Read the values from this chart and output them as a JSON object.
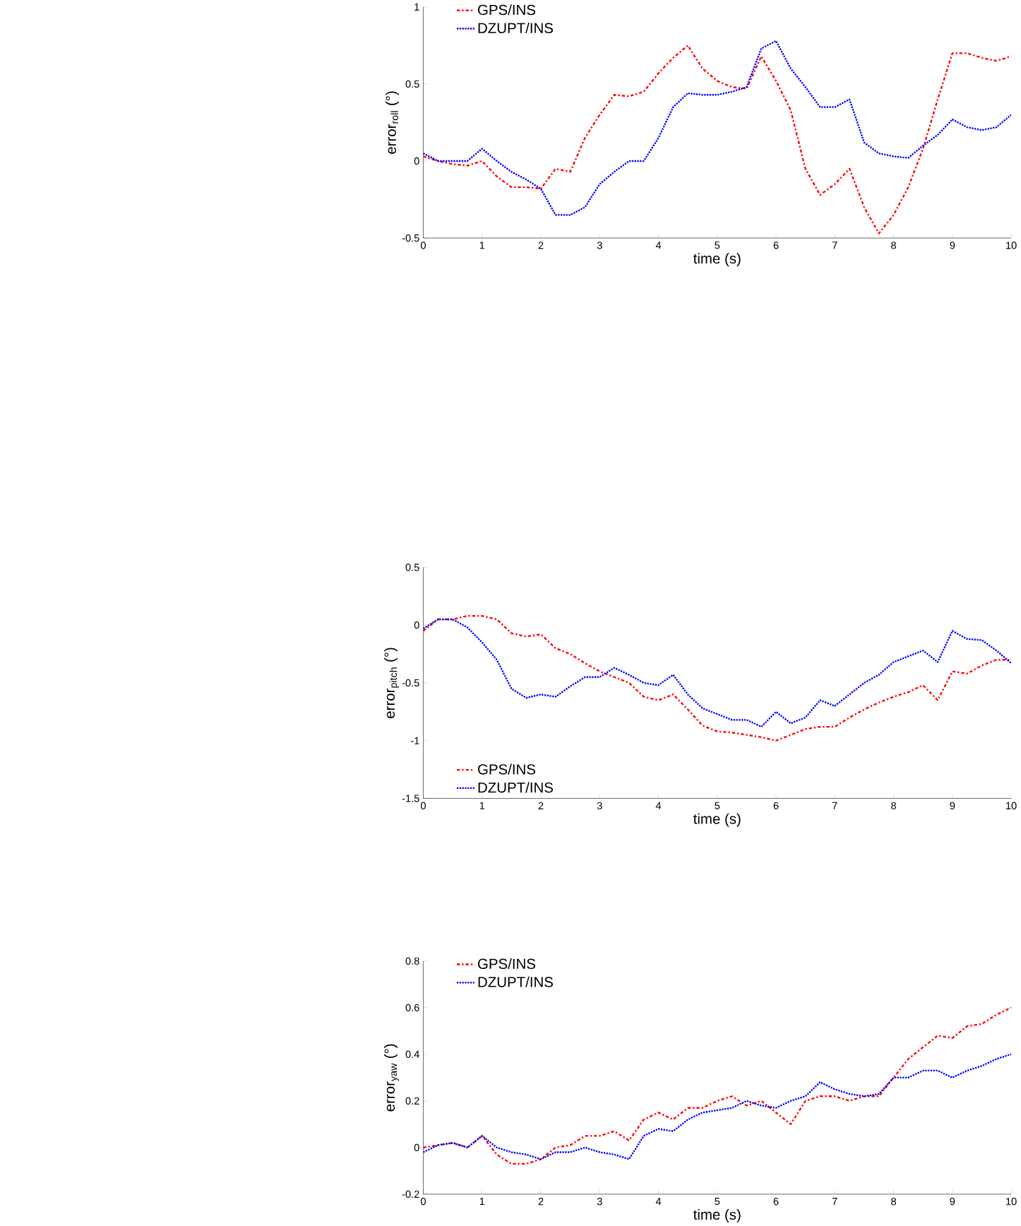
{
  "chart_data": [
    {
      "type": "line",
      "xlabel": "time (s)",
      "ylabel": "error$_{roll}$ (°)",
      "xlim": [
        0,
        10
      ],
      "ylim": [
        -0.5,
        1
      ],
      "xticks": [
        0,
        1,
        2,
        3,
        4,
        5,
        6,
        7,
        8,
        9,
        10
      ],
      "yticks": [
        -0.5,
        0,
        0.5,
        1
      ],
      "legend": "top left",
      "x": [
        0,
        0.25,
        0.5,
        0.75,
        1,
        1.25,
        1.5,
        1.75,
        2,
        2.25,
        2.5,
        2.75,
        3,
        3.25,
        3.5,
        3.75,
        4,
        4.25,
        4.5,
        4.75,
        5,
        5.25,
        5.5,
        5.75,
        6,
        6.25,
        6.5,
        6.75,
        7,
        7.25,
        7.5,
        7.75,
        8,
        8.25,
        8.5,
        8.75,
        9,
        9.25,
        9.5,
        9.75,
        10
      ],
      "series": [
        {
          "name": "GPS/INS",
          "color": "#ff0000",
          "line_style": "dashdot",
          "values": [
            0.03,
            0.0,
            -0.02,
            -0.03,
            0.0,
            -0.1,
            -0.17,
            -0.17,
            -0.18,
            -0.05,
            -0.07,
            0.15,
            0.3,
            0.43,
            0.42,
            0.45,
            0.57,
            0.67,
            0.75,
            0.6,
            0.52,
            0.48,
            0.47,
            0.68,
            0.52,
            0.33,
            -0.05,
            -0.22,
            -0.15,
            -0.05,
            -0.3,
            -0.47,
            -0.35,
            -0.17,
            0.08,
            0.4,
            0.7,
            0.7,
            0.67,
            0.65,
            0.68
          ]
        },
        {
          "name": "DZUPT/INS",
          "color": "#0000ff",
          "line_style": "dotted",
          "values": [
            0.05,
            0.0,
            0.0,
            0.0,
            0.08,
            0.0,
            -0.07,
            -0.12,
            -0.18,
            -0.35,
            -0.35,
            -0.3,
            -0.15,
            -0.07,
            0.0,
            0.0,
            0.15,
            0.35,
            0.44,
            0.43,
            0.43,
            0.45,
            0.48,
            0.73,
            0.78,
            0.6,
            0.48,
            0.35,
            0.35,
            0.4,
            0.12,
            0.05,
            0.03,
            0.02,
            0.1,
            0.17,
            0.27,
            0.22,
            0.2,
            0.22,
            0.3
          ]
        }
      ]
    },
    {
      "type": "line",
      "xlabel": "time (s)",
      "ylabel": "error$_{pitch}$ (°)",
      "xlim": [
        0,
        10
      ],
      "ylim": [
        -1.5,
        0.5
      ],
      "xticks": [
        0,
        1,
        2,
        3,
        4,
        5,
        6,
        7,
        8,
        9,
        10
      ],
      "yticks": [
        -1.5,
        -1,
        -0.5,
        0,
        0.5
      ],
      "legend": "bottom left",
      "x": [
        0,
        0.25,
        0.5,
        0.75,
        1,
        1.25,
        1.5,
        1.75,
        2,
        2.25,
        2.5,
        2.75,
        3,
        3.25,
        3.5,
        3.75,
        4,
        4.25,
        4.5,
        4.75,
        5,
        5.25,
        5.5,
        5.75,
        6,
        6.25,
        6.5,
        6.75,
        7,
        7.25,
        7.5,
        7.75,
        8,
        8.25,
        8.5,
        8.75,
        9,
        9.25,
        9.5,
        9.75,
        10
      ],
      "series": [
        {
          "name": "GPS/INS",
          "color": "#ff0000",
          "line_style": "dashdot",
          "values": [
            -0.05,
            0.05,
            0.05,
            0.08,
            0.08,
            0.05,
            -0.07,
            -0.1,
            -0.08,
            -0.2,
            -0.25,
            -0.33,
            -0.4,
            -0.45,
            -0.5,
            -0.62,
            -0.65,
            -0.6,
            -0.73,
            -0.87,
            -0.92,
            -0.93,
            -0.95,
            -0.97,
            -1.0,
            -0.95,
            -0.9,
            -0.88,
            -0.88,
            -0.8,
            -0.73,
            -0.67,
            -0.62,
            -0.58,
            -0.52,
            -0.65,
            -0.4,
            -0.42,
            -0.35,
            -0.3,
            -0.3
          ]
        },
        {
          "name": "DZUPT/INS",
          "color": "#0000ff",
          "line_style": "dotted",
          "values": [
            -0.03,
            0.05,
            0.05,
            -0.02,
            -0.15,
            -0.3,
            -0.55,
            -0.63,
            -0.6,
            -0.62,
            -0.53,
            -0.45,
            -0.45,
            -0.37,
            -0.43,
            -0.5,
            -0.52,
            -0.43,
            -0.6,
            -0.72,
            -0.77,
            -0.82,
            -0.82,
            -0.88,
            -0.75,
            -0.85,
            -0.8,
            -0.65,
            -0.7,
            -0.6,
            -0.5,
            -0.43,
            -0.32,
            -0.27,
            -0.22,
            -0.32,
            -0.05,
            -0.12,
            -0.13,
            -0.22,
            -0.33
          ]
        }
      ]
    },
    {
      "type": "line",
      "xlabel": "time (s)",
      "ylabel": "error$_{yaw}$ (°)",
      "xlim": [
        0,
        10
      ],
      "ylim": [
        -0.2,
        0.8
      ],
      "xticks": [
        0,
        1,
        2,
        3,
        4,
        5,
        6,
        7,
        8,
        9,
        10
      ],
      "yticks": [
        -0.2,
        0,
        0.2,
        0.4,
        0.6,
        0.8
      ],
      "legend": "top left",
      "x": [
        0,
        0.25,
        0.5,
        0.75,
        1,
        1.25,
        1.5,
        1.75,
        2,
        2.25,
        2.5,
        2.75,
        3,
        3.25,
        3.5,
        3.75,
        4,
        4.25,
        4.5,
        4.75,
        5,
        5.25,
        5.5,
        5.75,
        6,
        6.25,
        6.5,
        6.75,
        7,
        7.25,
        7.5,
        7.75,
        8,
        8.25,
        8.5,
        8.75,
        9,
        9.25,
        9.5,
        9.75,
        10
      ],
      "series": [
        {
          "name": "GPS/INS",
          "color": "#ff0000",
          "line_style": "dashdot",
          "values": [
            0.0,
            0.01,
            0.02,
            0.0,
            0.05,
            -0.03,
            -0.07,
            -0.07,
            -0.05,
            0.0,
            0.01,
            0.05,
            0.05,
            0.07,
            0.03,
            0.12,
            0.15,
            0.12,
            0.17,
            0.17,
            0.2,
            0.22,
            0.18,
            0.2,
            0.15,
            0.1,
            0.2,
            0.22,
            0.22,
            0.2,
            0.22,
            0.22,
            0.3,
            0.38,
            0.43,
            0.48,
            0.47,
            0.52,
            0.53,
            0.57,
            0.6
          ]
        },
        {
          "name": "DZUPT/INS",
          "color": "#0000ff",
          "line_style": "dotted",
          "values": [
            -0.02,
            0.01,
            0.02,
            0.0,
            0.05,
            0.0,
            -0.02,
            -0.03,
            -0.05,
            -0.02,
            -0.02,
            0.0,
            -0.02,
            -0.03,
            -0.05,
            0.05,
            0.08,
            0.07,
            0.12,
            0.15,
            0.16,
            0.17,
            0.2,
            0.18,
            0.17,
            0.2,
            0.22,
            0.28,
            0.25,
            0.23,
            0.22,
            0.23,
            0.3,
            0.3,
            0.33,
            0.33,
            0.3,
            0.33,
            0.35,
            0.38,
            0.4
          ]
        }
      ]
    }
  ]
}
